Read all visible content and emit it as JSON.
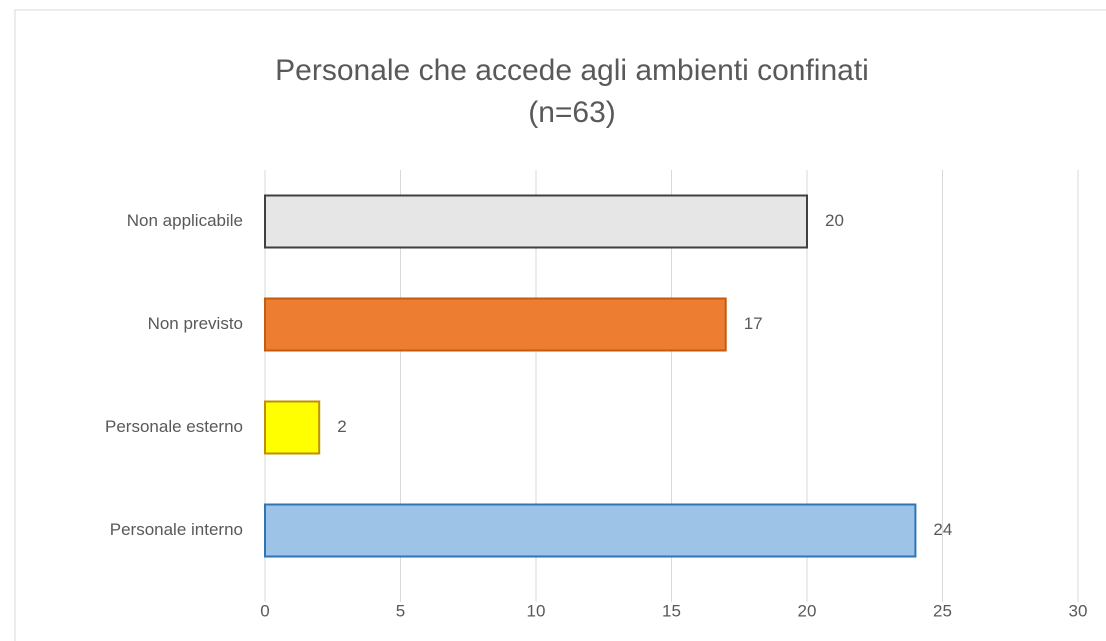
{
  "chart_data": {
    "type": "barh",
    "title": "Personale che accede agli ambienti confinati",
    "subtitle": "(n=63)",
    "categories": [
      "Non applicabile",
      "Non previsto",
      "Personale esterno",
      "Personale interno"
    ],
    "values": [
      20,
      17,
      2,
      24
    ],
    "colors": [
      "#e7e6e6",
      "#ed7d31",
      "#ffff00",
      "#9dc3e6"
    ],
    "edge_colors": [
      "#404040",
      "#c55a11",
      "#bf9000",
      "#2e75b6"
    ],
    "xlim": [
      0,
      30
    ],
    "xticks": [
      0,
      5,
      10,
      15,
      20,
      25,
      30
    ],
    "grid": true
  }
}
